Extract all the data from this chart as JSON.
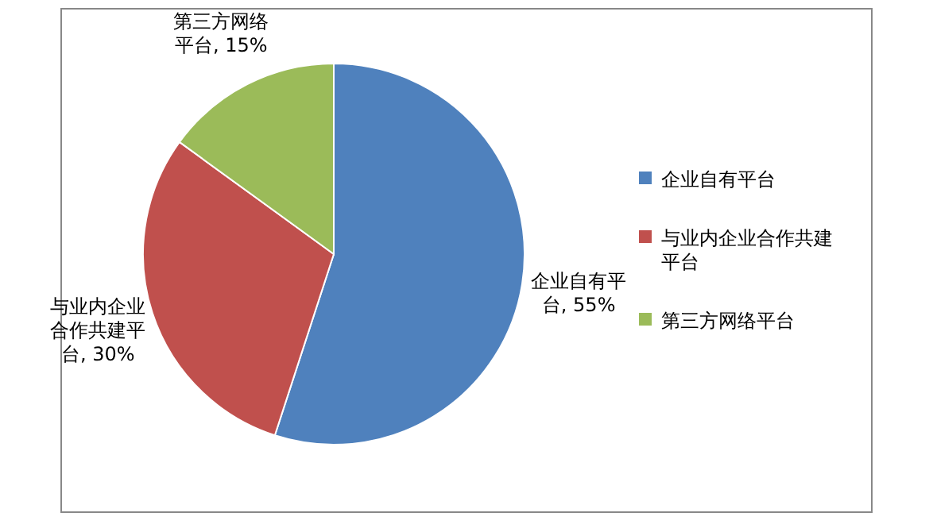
{
  "chart_data": {
    "type": "pie",
    "categories": [
      "企业自有平台",
      "与业内企业合作共建平台",
      "第三方网络平台"
    ],
    "values": [
      55,
      30,
      15
    ],
    "colors": [
      "#4f81bd",
      "#c0504d",
      "#9bbb59"
    ],
    "value_labels": [
      "企业自有平台, 55%",
      "与业内企业合作共建平台, 30%",
      "第三方网络平台, 15%"
    ],
    "legend": "right"
  }
}
